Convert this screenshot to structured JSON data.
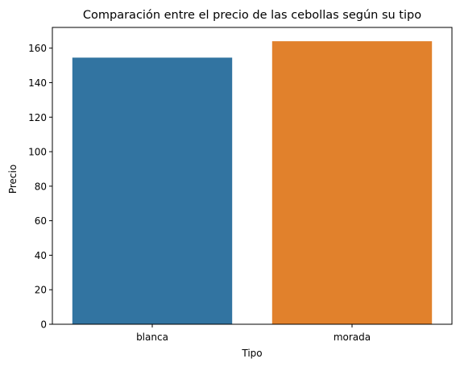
{
  "chart_data": {
    "type": "bar",
    "title": "Comparación entre el precio de las cebollas según su tipo",
    "xlabel": "Tipo",
    "ylabel": "Precio",
    "categories": [
      "blanca",
      "morada"
    ],
    "values": [
      154.5,
      164
    ],
    "colors": [
      "#3274a1",
      "#e1812c"
    ],
    "ylim": [
      0,
      172
    ],
    "yticks": [
      0,
      20,
      40,
      60,
      80,
      100,
      120,
      140,
      160
    ],
    "grid": false,
    "legend": "none"
  }
}
